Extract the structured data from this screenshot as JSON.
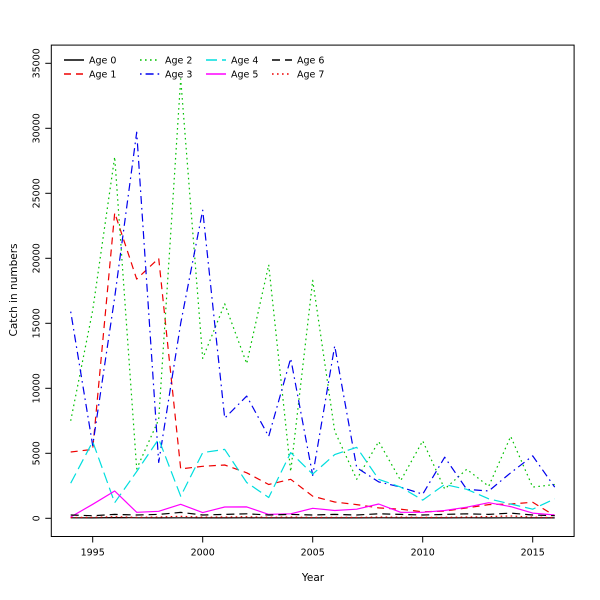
{
  "chart_data": {
    "type": "line",
    "title": "",
    "xlabel": "Year",
    "ylabel": "Catch in numbers",
    "x": [
      1994,
      1995,
      1996,
      1997,
      1998,
      1999,
      2000,
      2001,
      2002,
      2003,
      2004,
      2005,
      2006,
      2007,
      2008,
      2009,
      2010,
      2011,
      2012,
      2013,
      2014,
      2015,
      2016
    ],
    "xticks": [
      1995,
      2000,
      2005,
      2010,
      2015
    ],
    "yticks": [
      0,
      5000,
      10000,
      15000,
      20000,
      25000,
      30000,
      35000
    ],
    "xlim": [
      1994,
      2016
    ],
    "ylim": [
      0,
      35000
    ],
    "grid": false,
    "legend_position": "top-left",
    "legend_rows": 2,
    "legend_order": "column-major",
    "series": [
      {
        "name": "Age 0",
        "color": "#000000",
        "dash": "solid",
        "values": [
          40,
          30,
          50,
          40,
          30,
          40,
          30,
          30,
          40,
          30,
          30,
          30,
          30,
          30,
          40,
          30,
          30,
          30,
          40,
          30,
          40,
          30,
          30
        ]
      },
      {
        "name": "Age 1",
        "color": "#ee0000",
        "dash": "dashed",
        "values": [
          5100,
          5300,
          23500,
          18400,
          20000,
          3800,
          4000,
          4100,
          3500,
          2600,
          3000,
          1700,
          1250,
          1050,
          800,
          700,
          500,
          550,
          800,
          1050,
          1100,
          1230,
          200
        ]
      },
      {
        "name": "Age 2",
        "color": "#00c000",
        "dash": "dotted",
        "values": [
          7500,
          16000,
          27800,
          3800,
          7600,
          33800,
          12300,
          16500,
          11900,
          19500,
          3600,
          18300,
          6700,
          3000,
          5900,
          2900,
          5950,
          2250,
          3770,
          2460,
          6300,
          2400,
          2600
        ]
      },
      {
        "name": "Age 3",
        "color": "#0000ee",
        "dash": "dotdash",
        "values": [
          15900,
          5600,
          17000,
          29700,
          4300,
          15000,
          23700,
          7700,
          9400,
          6300,
          12300,
          3300,
          13260,
          3900,
          2800,
          2400,
          1850,
          4700,
          2230,
          2100,
          3500,
          4800,
          2400
        ]
      },
      {
        "name": "Age 4",
        "color": "#00dede",
        "dash": "longdash",
        "values": [
          2700,
          5900,
          1200,
          3600,
          6100,
          1700,
          5050,
          5300,
          2750,
          1600,
          5050,
          3400,
          4900,
          5460,
          3000,
          2400,
          1400,
          2600,
          2230,
          1500,
          1100,
          700,
          1500
        ]
      },
      {
        "name": "Age 5",
        "color": "#ff00ff",
        "dash": "solid",
        "values": [
          100,
          1080,
          2100,
          460,
          540,
          1080,
          440,
          870,
          880,
          300,
          350,
          770,
          600,
          700,
          1100,
          460,
          460,
          600,
          850,
          1200,
          900,
          400,
          250
        ]
      },
      {
        "name": "Age 6",
        "color": "#000000",
        "dash": "longdash2",
        "values": [
          250,
          200,
          300,
          250,
          300,
          450,
          250,
          300,
          350,
          250,
          300,
          250,
          300,
          250,
          350,
          300,
          250,
          300,
          350,
          300,
          400,
          250,
          200
        ]
      },
      {
        "name": "Age 7",
        "color": "#ee0000",
        "dash": "dotted",
        "values": [
          60,
          80,
          120,
          80,
          100,
          150,
          90,
          100,
          120,
          80,
          100,
          70,
          80,
          70,
          100,
          90,
          70,
          80,
          100,
          130,
          180,
          90,
          50
        ]
      }
    ]
  }
}
